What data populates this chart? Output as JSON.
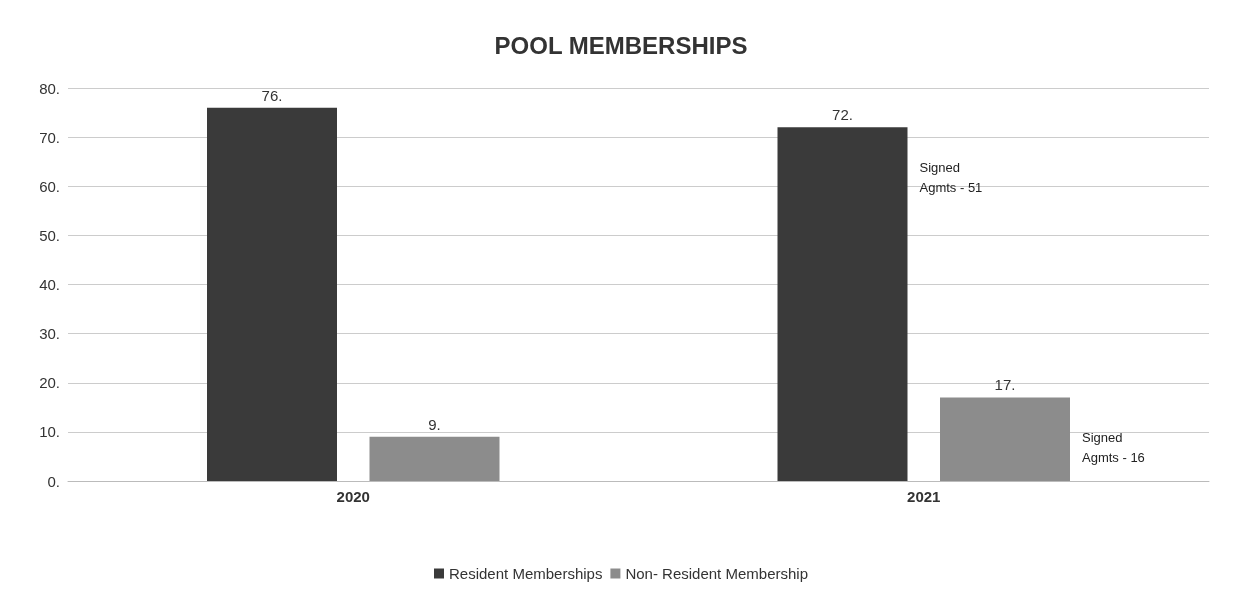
{
  "chart_data": {
    "type": "bar",
    "title": "POOL MEMBERSHIPS",
    "categories": [
      "2020",
      "2021"
    ],
    "series": [
      {
        "name": "Resident Memberships",
        "color": "#3a3a3a",
        "values": [
          76,
          72
        ],
        "value_labels": [
          "76.",
          "72."
        ]
      },
      {
        "name": "Non- Resident Membership",
        "color": "#8c8c8c",
        "values": [
          9,
          17
        ],
        "value_labels": [
          "9.",
          "17."
        ]
      }
    ],
    "ylim": [
      0,
      80
    ],
    "yticks": [
      {
        "value": 0,
        "label": "0."
      },
      {
        "value": 10,
        "label": "10."
      },
      {
        "value": 20,
        "label": "20."
      },
      {
        "value": 30,
        "label": "30."
      },
      {
        "value": 40,
        "label": "40."
      },
      {
        "value": 50,
        "label": "50."
      },
      {
        "value": 60,
        "label": "60."
      },
      {
        "value": 70,
        "label": "70."
      },
      {
        "value": 80,
        "label": "80."
      }
    ],
    "grid": "y",
    "legend": "bottom",
    "annotations": [
      "Signed Agmts - 51",
      "Signed Agmts - 16"
    ]
  }
}
